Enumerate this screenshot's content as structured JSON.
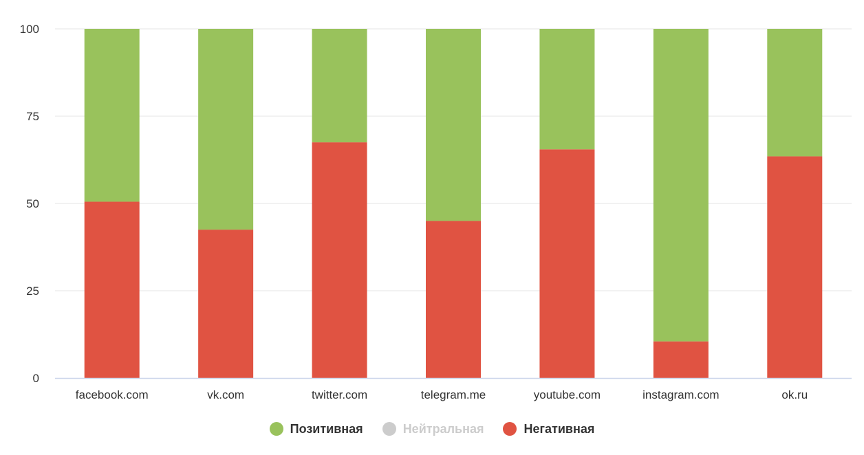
{
  "chart_data": {
    "type": "bar",
    "stacked": true,
    "categories": [
      "facebook.com",
      "vk.com",
      "twitter.com",
      "telegram.me",
      "youtube.com",
      "instagram.com",
      "ok.ru"
    ],
    "series": [
      {
        "name": "Негативная",
        "color": "#e05342",
        "values": [
          50.5,
          42.5,
          67.5,
          45,
          65.5,
          10.5,
          63.5
        ]
      },
      {
        "name": "Позитивная",
        "color": "#99c25c",
        "values": [
          49.5,
          57.5,
          32.5,
          55,
          34.5,
          89.5,
          36.5
        ]
      }
    ],
    "ylim": [
      0,
      100
    ],
    "yticks": [
      "0",
      "25",
      "50",
      "75",
      "100"
    ],
    "grid": true,
    "legend_position": "bottom-center"
  },
  "legend": {
    "items": [
      {
        "label": "Позитивная",
        "color": "#99c25c",
        "visible": true
      },
      {
        "label": "Нейтральная",
        "color": "#cccccc",
        "visible": false
      },
      {
        "label": "Негативная",
        "color": "#e05342",
        "visible": true
      }
    ]
  }
}
